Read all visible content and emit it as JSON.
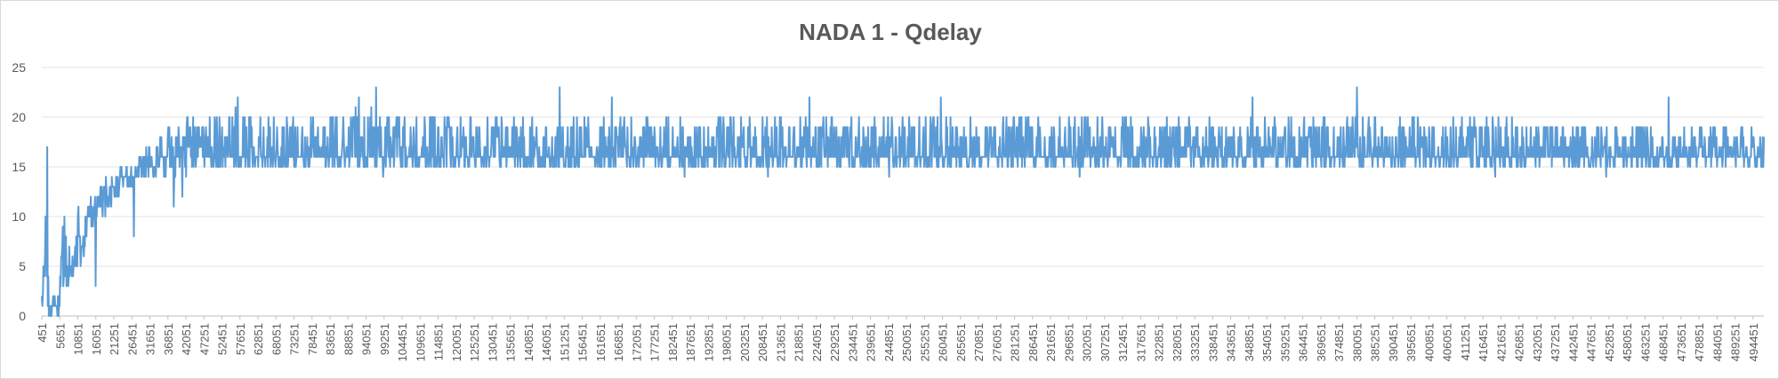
{
  "chart_data": {
    "type": "line",
    "title": "NADA 1 - Qdelay",
    "xlabel": "",
    "ylabel": "",
    "ylim": [
      0,
      25
    ],
    "yticks": [
      0,
      5,
      10,
      15,
      20,
      25
    ],
    "x_first": 451,
    "x_step": 50,
    "x_last": 497551,
    "xtick_step": 5200,
    "grid": "horizontal",
    "legend": "none",
    "series_color": "#5b9bd5",
    "series": [
      {
        "name": "",
        "anchors_x": [
          451,
          1800,
          2400,
          3000,
          4500,
          5451,
          6500,
          7500,
          8500,
          9500,
          10551,
          12000,
          13000,
          14500,
          15651,
          17000,
          18500,
          20751,
          22500,
          24500,
          25851,
          28000,
          30951,
          34000,
          36051,
          38500,
          41151,
          44000,
          46251,
          50000,
          56451,
          70000,
          90000,
          130000,
          200000,
          300000,
          400000,
          497551
        ],
        "anchors_lo": [
          0,
          0,
          0,
          0,
          0,
          0,
          2,
          1,
          2,
          4,
          5,
          5,
          7,
          9,
          9,
          10,
          10,
          11,
          12,
          13,
          13,
          13,
          14,
          13,
          14,
          14,
          14,
          14,
          15,
          15,
          15,
          15,
          15,
          15,
          15,
          15,
          15,
          15
        ],
        "anchors_hi": [
          4,
          17,
          2,
          2,
          2,
          2,
          10,
          10,
          7,
          6,
          11,
          9,
          10,
          12,
          12,
          13,
          14,
          14,
          15,
          15,
          15,
          16,
          17,
          18,
          19,
          19,
          20,
          20,
          20,
          20,
          21,
          20,
          21,
          20,
          20,
          20,
          20,
          19
        ],
        "spikes": [
          {
            "x": 2000,
            "y": 17
          },
          {
            "x": 7000,
            "y": 10
          },
          {
            "x": 11000,
            "y": 11
          },
          {
            "x": 16000,
            "y": 3
          },
          {
            "x": 27000,
            "y": 8
          },
          {
            "x": 38500,
            "y": 11
          },
          {
            "x": 41000,
            "y": 12
          },
          {
            "x": 57000,
            "y": 22
          },
          {
            "x": 92000,
            "y": 22
          },
          {
            "x": 97000,
            "y": 23
          },
          {
            "x": 99000,
            "y": 14
          },
          {
            "x": 150000,
            "y": 23
          },
          {
            "x": 165000,
            "y": 22
          },
          {
            "x": 186000,
            "y": 14
          },
          {
            "x": 210000,
            "y": 14
          },
          {
            "x": 222000,
            "y": 22
          },
          {
            "x": 245000,
            "y": 14
          },
          {
            "x": 260000,
            "y": 22
          },
          {
            "x": 300000,
            "y": 14
          },
          {
            "x": 350000,
            "y": 22
          },
          {
            "x": 380000,
            "y": 23
          },
          {
            "x": 420000,
            "y": 14
          },
          {
            "x": 452000,
            "y": 14
          },
          {
            "x": 470000,
            "y": 22
          }
        ]
      }
    ]
  }
}
